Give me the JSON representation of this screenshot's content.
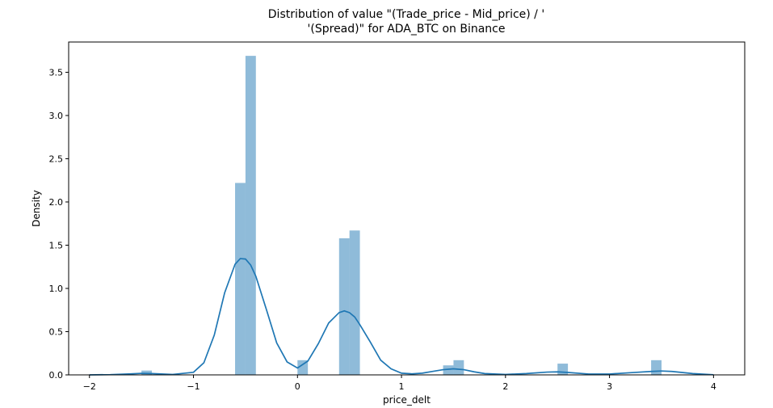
{
  "chart_data": {
    "type": "bar",
    "title_lines": [
      "Distribution of value \"(Trade_price - Mid_price) / '",
      "'(Spread)\" for ADA_BTC on Binance"
    ],
    "xlabel": "price_delt",
    "ylabel": "Density",
    "xlim": [
      -2.2,
      4.3
    ],
    "ylim": [
      0,
      3.85
    ],
    "xticks": [
      -2,
      -1,
      0,
      1,
      2,
      3,
      4
    ],
    "xtick_labels": [
      "−2",
      "−1",
      "0",
      "1",
      "2",
      "3",
      "4"
    ],
    "yticks": [
      0.0,
      0.5,
      1.0,
      1.5,
      2.0,
      2.5,
      3.0,
      3.5
    ],
    "ytick_labels": [
      "0.0",
      "0.5",
      "1.0",
      "1.5",
      "2.0",
      "2.5",
      "3.0",
      "3.5"
    ],
    "grid": false,
    "bar_color": "#1f77b4",
    "line_color": "#1f77b4",
    "histogram": {
      "bin_width": 0.1,
      "bins": [
        {
          "x0": -1.5,
          "density": 0.05
        },
        {
          "x0": -0.6,
          "density": 2.22
        },
        {
          "x0": -0.5,
          "density": 3.69
        },
        {
          "x0": 0.0,
          "density": 0.17
        },
        {
          "x0": 0.4,
          "density": 1.58
        },
        {
          "x0": 0.5,
          "density": 1.67
        },
        {
          "x0": 1.4,
          "density": 0.11
        },
        {
          "x0": 1.5,
          "density": 0.17
        },
        {
          "x0": 2.5,
          "density": 0.13
        },
        {
          "x0": 3.4,
          "density": 0.17
        }
      ]
    },
    "kde": {
      "x": [
        -2.0,
        -1.8,
        -1.6,
        -1.5,
        -1.4,
        -1.2,
        -1.0,
        -0.9,
        -0.8,
        -0.7,
        -0.6,
        -0.55,
        -0.5,
        -0.45,
        -0.4,
        -0.3,
        -0.2,
        -0.1,
        0.0,
        0.1,
        0.2,
        0.3,
        0.4,
        0.45,
        0.5,
        0.55,
        0.6,
        0.7,
        0.8,
        0.9,
        1.0,
        1.1,
        1.2,
        1.3,
        1.4,
        1.5,
        1.6,
        1.7,
        1.8,
        2.0,
        2.2,
        2.4,
        2.5,
        2.6,
        2.8,
        3.0,
        3.2,
        3.4,
        3.5,
        3.6,
        3.8,
        4.0
      ],
      "y": [
        0.0,
        0.003,
        0.012,
        0.018,
        0.015,
        0.005,
        0.03,
        0.14,
        0.46,
        0.95,
        1.28,
        1.345,
        1.34,
        1.27,
        1.14,
        0.76,
        0.37,
        0.15,
        0.08,
        0.16,
        0.36,
        0.6,
        0.72,
        0.74,
        0.72,
        0.67,
        0.58,
        0.38,
        0.17,
        0.07,
        0.02,
        0.012,
        0.02,
        0.04,
        0.06,
        0.07,
        0.06,
        0.035,
        0.015,
        0.005,
        0.015,
        0.032,
        0.035,
        0.028,
        0.01,
        0.01,
        0.025,
        0.04,
        0.045,
        0.04,
        0.015,
        0.002
      ]
    }
  }
}
